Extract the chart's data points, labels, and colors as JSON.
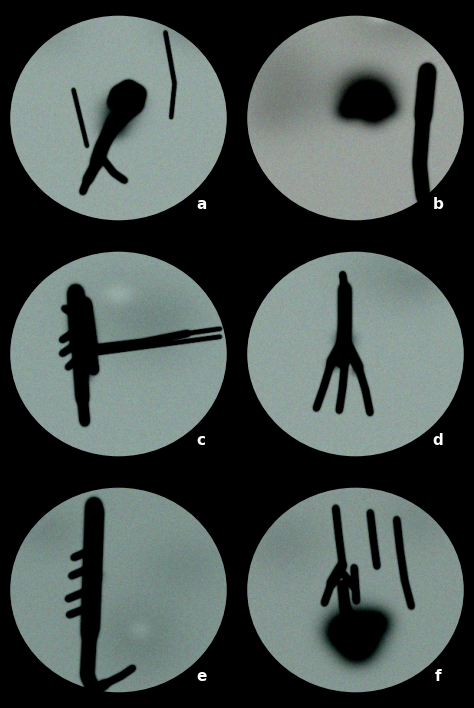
{
  "background_color": "#000000",
  "figure_size": [
    4.74,
    7.08
  ],
  "dpi": 100,
  "grid_rows": 3,
  "grid_cols": 2,
  "labels": [
    "a",
    "b",
    "c",
    "d",
    "e",
    "f"
  ],
  "label_color": "#ffffff",
  "label_fontsize": 11,
  "panels": [
    {
      "id": "a",
      "base_r": 0.58,
      "base_g": 0.65,
      "base_b": 0.63
    },
    {
      "id": "b",
      "base_r": 0.6,
      "base_g": 0.63,
      "base_b": 0.61
    },
    {
      "id": "c",
      "base_r": 0.55,
      "base_g": 0.63,
      "base_b": 0.61
    },
    {
      "id": "d",
      "base_r": 0.57,
      "base_g": 0.64,
      "base_b": 0.62
    },
    {
      "id": "e",
      "base_r": 0.5,
      "base_g": 0.58,
      "base_b": 0.56
    },
    {
      "id": "f",
      "base_r": 0.52,
      "base_g": 0.59,
      "base_b": 0.57
    }
  ]
}
